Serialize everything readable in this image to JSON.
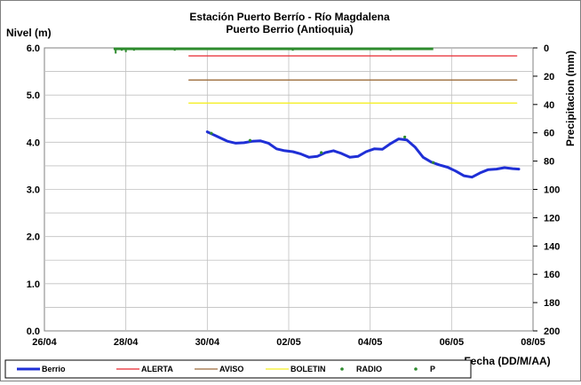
{
  "chart_data": {
    "type": "line",
    "title": "Estación Puerto Berrío - Río Magdalena",
    "subtitle": "Puerto Berrio (Antioquia)",
    "ylabel_left": "Nivel (m)",
    "ylabel_right": "Precipitacion (mm)",
    "xlabel": "Fecha (DD/M/AA)",
    "x_tick_labels": [
      "26/04",
      "28/04",
      "30/04",
      "02/05",
      "04/05",
      "06/05",
      "08/05"
    ],
    "y_left_tick_labels": [
      "0.0",
      "1.0",
      "2.0",
      "3.0",
      "4.0",
      "5.0",
      "6.0"
    ],
    "y_right_tick_labels": [
      "0",
      "20",
      "40",
      "60",
      "80",
      "100",
      "120",
      "140",
      "160",
      "180",
      "200"
    ],
    "x_range_days": [
      0,
      12
    ],
    "y_left_range": [
      0,
      6
    ],
    "y_right_range": [
      0,
      200
    ],
    "y_right_inverted": true,
    "grid": true,
    "legend_position": "bottom",
    "series": [
      {
        "name": "Berrio",
        "color": "#1f2fd6",
        "style": "thick-line",
        "x": [
          4.0,
          4.1,
          4.2,
          4.35,
          4.5,
          4.7,
          4.9,
          5.1,
          5.3,
          5.5,
          5.7,
          5.9,
          6.1,
          6.3,
          6.5,
          6.7,
          6.9,
          7.1,
          7.3,
          7.5,
          7.7,
          7.9,
          8.1,
          8.3,
          8.5,
          8.7,
          8.9,
          9.1,
          9.3,
          9.5,
          9.7,
          9.9,
          10.1,
          10.3,
          10.5,
          10.7,
          10.9,
          11.1,
          11.3,
          11.5,
          11.65
        ],
        "y": [
          4.22,
          4.18,
          4.14,
          4.08,
          4.02,
          3.98,
          3.99,
          4.02,
          4.03,
          3.98,
          3.86,
          3.82,
          3.8,
          3.75,
          3.68,
          3.7,
          3.78,
          3.82,
          3.76,
          3.68,
          3.7,
          3.8,
          3.86,
          3.85,
          3.97,
          4.07,
          4.05,
          3.9,
          3.68,
          3.58,
          3.52,
          3.47,
          3.39,
          3.29,
          3.26,
          3.35,
          3.42,
          3.43,
          3.46,
          3.44,
          3.43
        ]
      },
      {
        "name": "ALERTA",
        "color": "#e8262d",
        "style": "line",
        "x": [
          3.55,
          11.6
        ],
        "y": [
          5.83,
          5.83
        ]
      },
      {
        "name": "AVISO",
        "color": "#9c6b3a",
        "style": "line",
        "x": [
          3.55,
          11.6
        ],
        "y": [
          5.32,
          5.32
        ]
      },
      {
        "name": "BOLETIN",
        "color": "#f4ef23",
        "style": "line",
        "x": [
          3.55,
          11.6
        ],
        "y": [
          4.83,
          4.83
        ]
      },
      {
        "name": "RADIO",
        "color": "#2e8b2e",
        "style": "points",
        "x": [
          4.1,
          5.05,
          6.8,
          8.85,
          9.55
        ],
        "y": [
          4.19,
          4.04,
          3.78,
          4.11,
          3.57
        ]
      },
      {
        "name": "P",
        "color": "#2e8b2e",
        "style": "precip-bars",
        "x": [
          1.75,
          1.9,
          2.0,
          2.2,
          2.5,
          3.2,
          3.4,
          3.7,
          4.2,
          5.8,
          6.1,
          6.3,
          6.8,
          7.0,
          7.6,
          8.1,
          8.5,
          8.9,
          9.2,
          9.4
        ],
        "y": [
          4,
          2,
          3,
          2,
          1,
          2,
          1,
          1,
          1,
          1,
          2,
          1,
          1,
          1,
          1,
          1,
          2,
          1,
          1,
          1
        ]
      }
    ],
    "precip_series_band_x": [
      1.7,
      9.55
    ]
  }
}
